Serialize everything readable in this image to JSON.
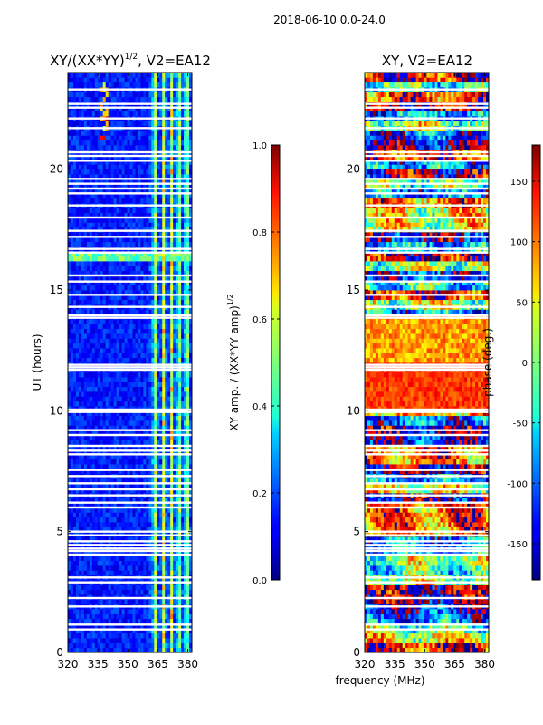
{
  "figure_title": "2018-06-10 0.0-24.0",
  "chart_data": [
    {
      "type": "heatmap",
      "title_main": "XY/(XX*YY)",
      "title_sup": "1/2",
      "title_rest": ", V2=EA12",
      "xlabel": "",
      "ylabel": "UT (hours)",
      "xlim": [
        320,
        382
      ],
      "ylim": [
        0,
        24
      ],
      "x_ticks": [
        320,
        335,
        350,
        365,
        380
      ],
      "y_ticks": [
        0,
        5,
        10,
        15,
        20
      ],
      "colorbar": {
        "label_main": "XY amp. / (XX*YY amp)",
        "label_sup": "1/2",
        "range": [
          0.0,
          1.0
        ],
        "ticks": [
          "0.0",
          "0.2",
          "0.4",
          "0.6",
          "0.8",
          "1.0"
        ],
        "colormap": "jet"
      }
    },
    {
      "type": "heatmap",
      "title": "XY, V2=EA12",
      "xlabel": "frequency (MHz)",
      "ylabel": "",
      "xlim": [
        320,
        382
      ],
      "ylim": [
        0,
        24
      ],
      "x_ticks": [
        320,
        335,
        350,
        365,
        380
      ],
      "y_ticks": [
        0,
        5,
        10,
        15,
        20
      ],
      "colorbar": {
        "label": "phase (deg.)",
        "range": [
          -180,
          180
        ],
        "ticks": [
          "-150",
          "-100",
          "-50",
          "0",
          "50",
          "100",
          "150"
        ],
        "colormap": "jet"
      }
    }
  ],
  "flagged_gaps_hours": [
    0.95,
    1.15,
    1.9,
    2.25,
    2.9,
    3.1,
    4.05,
    4.2,
    4.3,
    4.45,
    4.6,
    4.85,
    5.0,
    6.0,
    6.2,
    6.5,
    6.75,
    7.0,
    7.3,
    7.55,
    8.2,
    8.35,
    8.55,
    9.0,
    9.2,
    9.95,
    10.05,
    11.7,
    11.8,
    11.9,
    13.85,
    13.95,
    14.3,
    14.8,
    15.35,
    15.6,
    16.55,
    16.7,
    17.2,
    17.45,
    18.0,
    18.5,
    19.0,
    19.2,
    19.4,
    19.6,
    20.35,
    20.55,
    20.7,
    21.7,
    22.1,
    22.55,
    22.7,
    23.3
  ]
}
